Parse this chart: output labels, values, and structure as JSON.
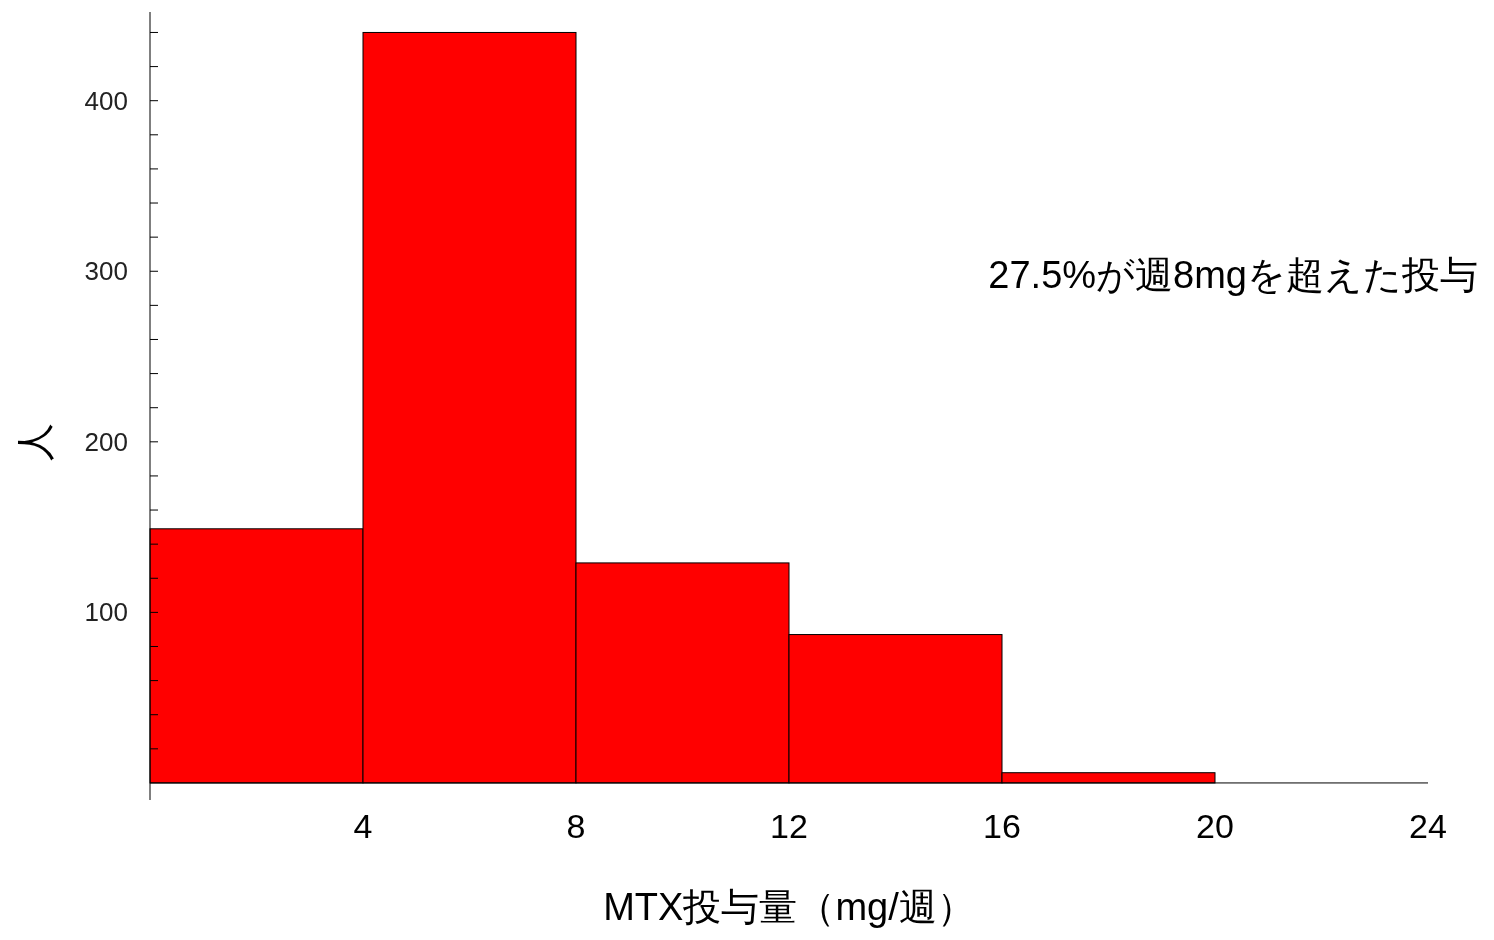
{
  "chart_data": {
    "type": "histogram",
    "xlabel": "MTX投与量（mg/週）",
    "ylabel": "人",
    "bins": [
      0,
      4,
      8,
      12,
      16,
      20
    ],
    "values": [
      149,
      440,
      129,
      87,
      6
    ],
    "color": "#ff0000",
    "xlim": [
      0,
      24
    ],
    "ylim": [
      -10,
      452
    ],
    "xticks": [
      4,
      8,
      12,
      16,
      20,
      24
    ],
    "yticks": [
      {
        "value": 20,
        "label": null
      },
      {
        "value": 40,
        "label": null
      },
      {
        "value": 60,
        "label": null
      },
      {
        "value": 80,
        "label": null
      },
      100,
      {
        "value": 120,
        "label": null
      },
      {
        "value": 140,
        "label": null
      },
      {
        "value": 160,
        "label": null
      },
      {
        "value": 180,
        "label": null
      },
      200,
      {
        "value": 220,
        "label": null
      },
      {
        "value": 240,
        "label": null
      },
      {
        "value": 260,
        "label": null
      },
      {
        "value": 280,
        "label": null
      },
      300,
      {
        "value": 320,
        "label": null
      },
      {
        "value": 340,
        "label": null
      },
      {
        "value": 360,
        "label": null
      },
      {
        "value": 380,
        "label": null
      },
      400,
      {
        "value": 420,
        "label": null
      },
      {
        "value": 440,
        "label": null
      }
    ],
    "grid": false,
    "annotations": [
      "27.5%が週8mgを超えた投与"
    ]
  }
}
